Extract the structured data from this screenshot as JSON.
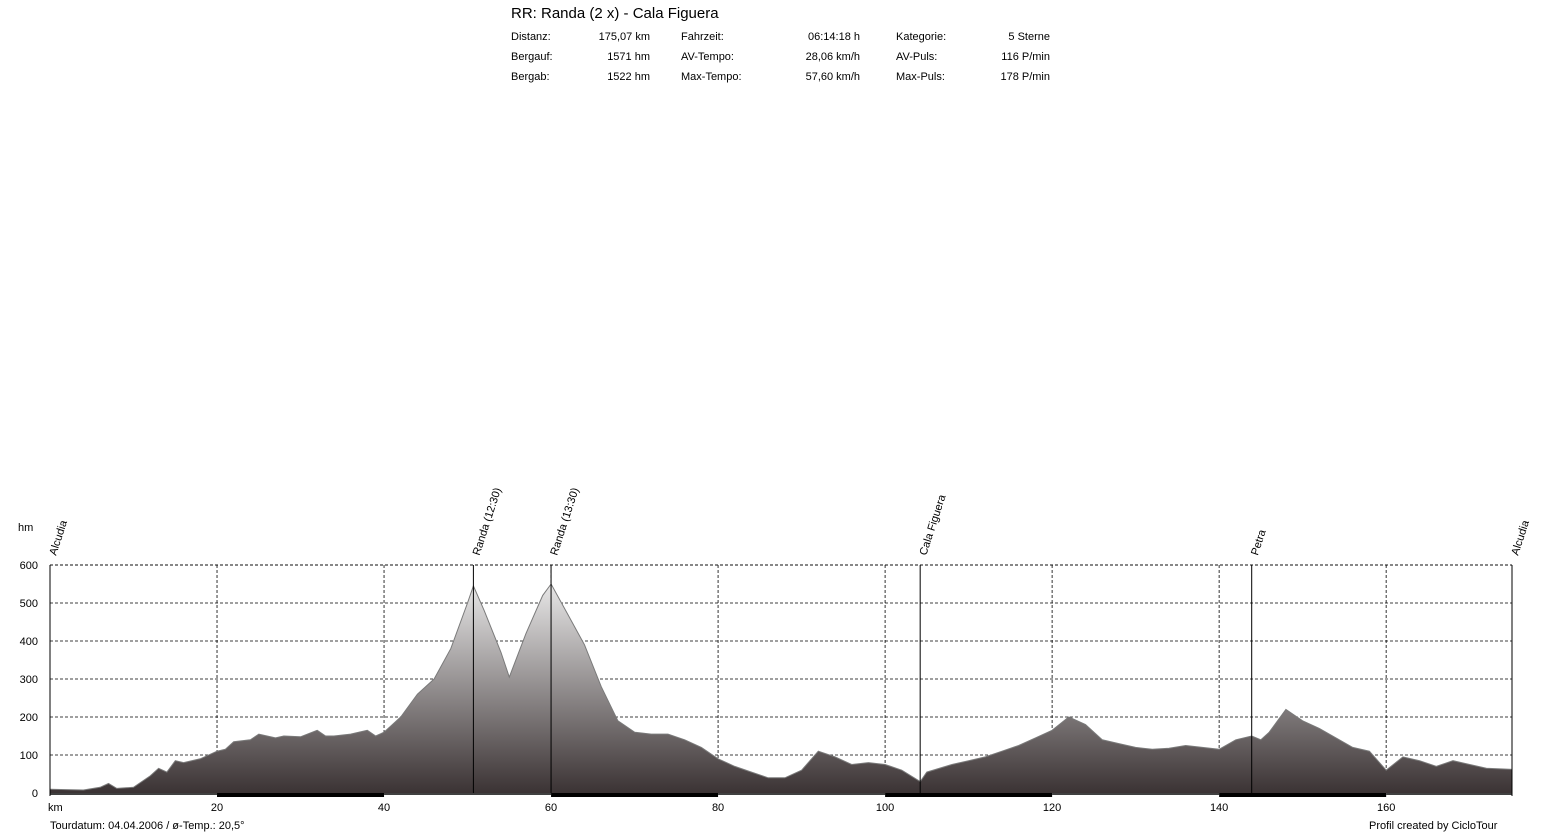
{
  "title": "RR: Randa (2 x) - Cala Figuera",
  "stats": [
    {
      "label": "Distanz:",
      "value": "175,07 km"
    },
    {
      "label": "Bergauf:",
      "value": "1571 hm"
    },
    {
      "label": "Bergab:",
      "value": "1522 hm"
    },
    {
      "label": "Fahrzeit:",
      "value": "06:14:18 h"
    },
    {
      "label": "AV-Tempo:",
      "value": "28,06 km/h"
    },
    {
      "label": "Max-Tempo:",
      "value": "57,60 km/h"
    },
    {
      "label": "Kategorie:",
      "value": "5 Sterne"
    },
    {
      "label": "AV-Puls:",
      "value": "116 P/min"
    },
    {
      "label": "Max-Puls:",
      "value": "178 P/min"
    }
  ],
  "footer": {
    "left": "Tourdatum: 04.04.2006  /  ø-Temp.: 20,5°",
    "right": "Profil created by CicloTour"
  },
  "colors": {
    "fill_top": "#f7f7f7",
    "fill_bottom": "#3b3334",
    "outline": "#7a7a7a",
    "grid": "#000000"
  },
  "chart_data": {
    "type": "area",
    "xlabel": "km",
    "ylabel": "hm",
    "xlim": [
      0,
      175.07
    ],
    "ylim": [
      0,
      600
    ],
    "x_ticks": [
      20,
      40,
      60,
      80,
      100,
      120,
      140,
      160
    ],
    "y_ticks": [
      0,
      100,
      200,
      300,
      400,
      500,
      600
    ],
    "grid": true,
    "waypoints": [
      {
        "name": "Alcudia",
        "km": 0
      },
      {
        "name": "Randa (12:30)",
        "km": 50.7
      },
      {
        "name": "Randa (13:30)",
        "km": 60
      },
      {
        "name": "Cala Figuera",
        "km": 104.2
      },
      {
        "name": "Petra",
        "km": 143.9
      },
      {
        "name": "Alcudia",
        "km": 175.07
      }
    ],
    "x": [
      0,
      4,
      6,
      7,
      8,
      10,
      12,
      13,
      14,
      15,
      16,
      18,
      20,
      21,
      22,
      24,
      25,
      27,
      28,
      30,
      32,
      33,
      34,
      36,
      38,
      39,
      40,
      42,
      44,
      46,
      48,
      50,
      50.7,
      52,
      54,
      55,
      57,
      59,
      60,
      62,
      64,
      66,
      68,
      70,
      72,
      74,
      76,
      78,
      80,
      82,
      84,
      86,
      88,
      90,
      92,
      94,
      96,
      98,
      100,
      102,
      104.2,
      105,
      108,
      110,
      112,
      114,
      116,
      118,
      120,
      122,
      124,
      126,
      128,
      130,
      132,
      134,
      136,
      138,
      140,
      142,
      143.9,
      145,
      146,
      148,
      150,
      152,
      154,
      156,
      158,
      160,
      162,
      164,
      166,
      168,
      170,
      172,
      175.07
    ],
    "y": [
      10,
      8,
      15,
      25,
      12,
      15,
      45,
      65,
      55,
      85,
      80,
      90,
      110,
      115,
      135,
      140,
      155,
      145,
      150,
      148,
      165,
      150,
      150,
      155,
      165,
      150,
      160,
      200,
      260,
      300,
      380,
      500,
      545,
      480,
      370,
      305,
      420,
      520,
      550,
      470,
      390,
      280,
      190,
      160,
      155,
      155,
      140,
      120,
      90,
      70,
      55,
      40,
      40,
      60,
      110,
      95,
      75,
      80,
      75,
      60,
      30,
      55,
      75,
      85,
      95,
      110,
      125,
      145,
      165,
      200,
      180,
      140,
      130,
      120,
      115,
      118,
      125,
      120,
      115,
      140,
      150,
      140,
      160,
      220,
      190,
      170,
      145,
      120,
      110,
      60,
      95,
      85,
      70,
      85,
      75,
      65,
      62
    ]
  }
}
